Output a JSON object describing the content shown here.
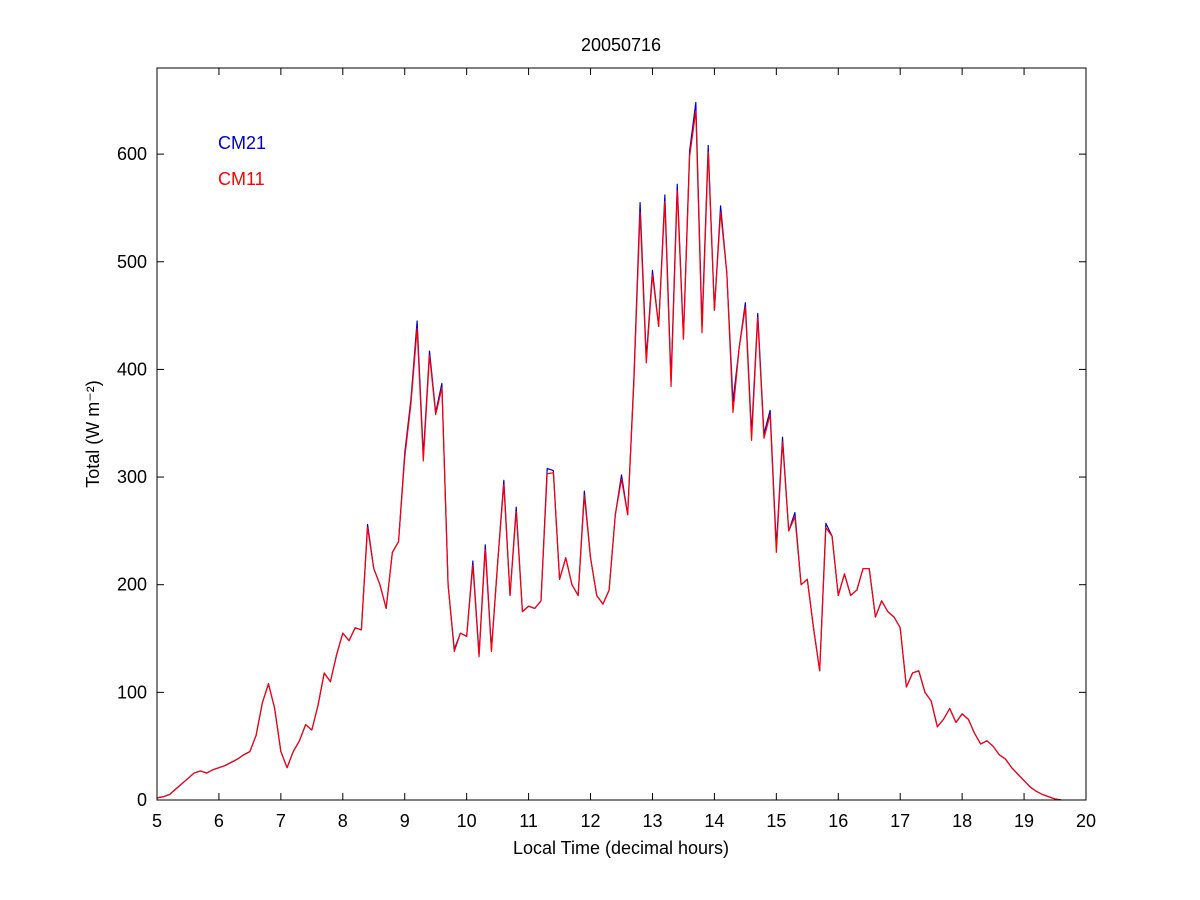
{
  "chart_data": {
    "type": "line",
    "title": "20050716",
    "xlabel": "Local Time (decimal hours)",
    "ylabel": "Total (W m⁻²)",
    "xlim": [
      5,
      20
    ],
    "xticks": [
      5,
      6,
      7,
      8,
      9,
      10,
      11,
      12,
      13,
      14,
      15,
      16,
      17,
      18,
      19,
      20
    ],
    "ylim": [
      0,
      680
    ],
    "yticks": [
      0,
      100,
      200,
      300,
      400,
      500,
      600
    ],
    "legend": "upper left",
    "x": [
      5.0,
      5.1,
      5.2,
      5.3,
      5.4,
      5.5,
      5.6,
      5.7,
      5.8,
      5.9,
      6.0,
      6.1,
      6.2,
      6.3,
      6.4,
      6.5,
      6.6,
      6.7,
      6.8,
      6.9,
      7.0,
      7.1,
      7.2,
      7.3,
      7.4,
      7.5,
      7.6,
      7.7,
      7.8,
      7.9,
      8.0,
      8.1,
      8.2,
      8.3,
      8.4,
      8.5,
      8.6,
      8.7,
      8.8,
      8.9,
      9.0,
      9.1,
      9.2,
      9.3,
      9.4,
      9.5,
      9.6,
      9.7,
      9.8,
      9.9,
      10.0,
      10.1,
      10.2,
      10.3,
      10.4,
      10.5,
      10.6,
      10.7,
      10.8,
      10.9,
      11.0,
      11.1,
      11.2,
      11.3,
      11.4,
      11.5,
      11.6,
      11.7,
      11.8,
      11.9,
      12.0,
      12.1,
      12.2,
      12.3,
      12.4,
      12.5,
      12.6,
      12.7,
      12.8,
      12.9,
      13.0,
      13.1,
      13.2,
      13.3,
      13.4,
      13.5,
      13.6,
      13.7,
      13.8,
      13.9,
      14.0,
      14.1,
      14.2,
      14.3,
      14.4,
      14.5,
      14.6,
      14.7,
      14.8,
      14.9,
      15.0,
      15.1,
      15.2,
      15.3,
      15.4,
      15.5,
      15.6,
      15.7,
      15.8,
      15.9,
      16.0,
      16.1,
      16.2,
      16.3,
      16.4,
      16.5,
      16.6,
      16.7,
      16.8,
      16.9,
      17.0,
      17.1,
      17.2,
      17.3,
      17.4,
      17.5,
      17.6,
      17.7,
      17.8,
      17.9,
      18.0,
      18.1,
      18.2,
      18.3,
      18.4,
      18.5,
      18.6,
      18.7,
      18.8,
      18.9,
      19.0,
      19.1,
      19.2,
      19.3,
      19.4,
      19.5,
      19.6
    ],
    "series": [
      {
        "name": "CM21",
        "color": "#0000cc",
        "values": [
          2,
          3,
          5,
          10,
          15,
          20,
          25,
          27,
          25,
          28,
          30,
          32,
          35,
          38,
          42,
          45,
          60,
          90,
          108,
          85,
          45,
          30,
          45,
          55,
          70,
          65,
          88,
          118,
          110,
          135,
          155,
          148,
          160,
          158,
          256,
          215,
          200,
          178,
          230,
          240,
          322,
          372,
          445,
          320,
          417,
          360,
          387,
          200,
          140,
          155,
          152,
          222,
          135,
          237,
          140,
          220,
          297,
          190,
          272,
          175,
          180,
          178,
          185,
          308,
          306,
          205,
          225,
          200,
          190,
          287,
          225,
          190,
          182,
          195,
          265,
          302,
          265,
          392,
          555,
          410,
          492,
          440,
          562,
          390,
          572,
          430,
          603,
          648,
          440,
          608,
          455,
          552,
          490,
          370,
          420,
          462,
          340,
          452,
          340,
          362,
          235,
          337,
          250,
          267,
          200,
          205,
          160,
          120,
          257,
          245,
          190,
          210,
          190,
          195,
          215,
          215,
          170,
          185,
          175,
          170,
          160,
          105,
          118,
          120,
          100,
          92,
          68,
          75,
          85,
          72,
          80,
          75,
          62,
          52,
          55,
          50,
          42,
          38,
          30,
          24,
          18,
          12,
          8,
          5,
          3,
          1,
          0
        ]
      },
      {
        "name": "CM11",
        "color": "#ff0000",
        "values": [
          2,
          3,
          5,
          10,
          15,
          20,
          25,
          27,
          25,
          28,
          30,
          32,
          35,
          38,
          42,
          45,
          60,
          90,
          108,
          85,
          45,
          30,
          45,
          55,
          70,
          65,
          88,
          118,
          110,
          135,
          155,
          148,
          160,
          158,
          253,
          215,
          200,
          178,
          230,
          240,
          318,
          368,
          438,
          315,
          413,
          358,
          383,
          200,
          138,
          155,
          152,
          218,
          133,
          233,
          138,
          220,
          293,
          190,
          268,
          175,
          180,
          178,
          185,
          303,
          304,
          205,
          225,
          200,
          190,
          283,
          225,
          190,
          182,
          195,
          265,
          298,
          265,
          388,
          546,
          406,
          488,
          440,
          556,
          384,
          566,
          428,
          598,
          640,
          434,
          602,
          455,
          546,
          490,
          360,
          420,
          458,
          334,
          448,
          336,
          358,
          230,
          333,
          250,
          263,
          200,
          205,
          160,
          120,
          253,
          245,
          190,
          210,
          190,
          195,
          215,
          215,
          170,
          185,
          175,
          170,
          160,
          105,
          118,
          120,
          100,
          92,
          68,
          75,
          85,
          72,
          80,
          75,
          62,
          52,
          55,
          50,
          42,
          38,
          30,
          24,
          18,
          12,
          8,
          5,
          3,
          1,
          0
        ]
      }
    ]
  }
}
